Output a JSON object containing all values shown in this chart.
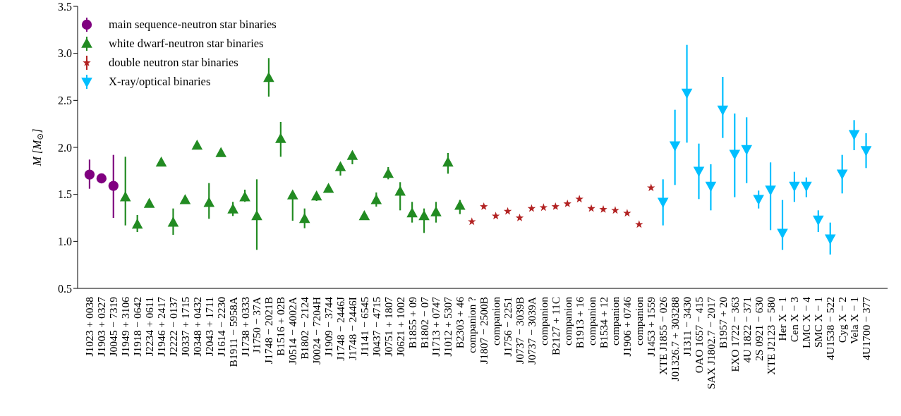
{
  "chart_data": {
    "type": "scatter",
    "ylabel": "M [M$_{⊙}$]",
    "categories": [
      "J1023 + 0038",
      "J1903 + 0327",
      "J0045 − 7319",
      "J1949 + 3106",
      "J1918 − 0642",
      "J2234 + 0611",
      "J1946 + 2417",
      "J2222 − 0137",
      "J0337 + 1715",
      "J0348 + 0432",
      "J2043 + 1711",
      "J1614 − 2230",
      "B1911 − 5958A",
      "J1738 + 0333",
      "J1750 − 37A",
      "J1748 − 2021B",
      "B1516 + 02B",
      "J0514 − 4002A",
      "B1802 − 2124",
      "J0024 − 7204H",
      "J1909 − 3744",
      "J1748 − 2446J",
      "J1748 − 2446I",
      "J1141 − 6545",
      "J0437 − 4715",
      "J0751 + 1807",
      "J0621 + 1002",
      "B1855 + 09",
      "B1802 − 07",
      "J1713 + 0747",
      "J1012 + 5307",
      "B2303 + 46",
      "companion ?",
      "J1807 − 2500B",
      "companion",
      "J1756 − 2251",
      "J0737 − 3039B",
      "J0737 − 3039A",
      "companion",
      "B2127 + 11C",
      "companion",
      "B1913 + 16",
      "companion",
      "B1534 + 12",
      "companion",
      "J1906 + 0746",
      "companion",
      "J1453 + 1559",
      "XTE J1855 − 026",
      "J01326.7 + 303288",
      "J1311 − 3430",
      "OAO 1657 − 415",
      "SAX J1802.7 − 2017",
      "B1957 + 20",
      "EXO 1722 − 363",
      "4U 1822 − 371",
      "2S 0921 − 630",
      "XTE J2123 − 580",
      "Her X − 1",
      "Cen X − 3",
      "LMC X − 4",
      "SMC X − 1",
      "4U1538 − 522",
      "Cyg X − 2",
      "Vela X − 1",
      "4U1700 − 377"
    ],
    "series": [
      {
        "name": "main sequence-neutron star binaries",
        "color": "#800080",
        "marker": "circle",
        "values": [
          1.71,
          1.67,
          1.59,
          null,
          null,
          null,
          null,
          null,
          null,
          null,
          null,
          null,
          null,
          null,
          null,
          null,
          null,
          null,
          null,
          null,
          null,
          null,
          null,
          null,
          null,
          null,
          null,
          null,
          null,
          null,
          null,
          null,
          null,
          null,
          null,
          null,
          null,
          null,
          null,
          null,
          null,
          null,
          null,
          null,
          null,
          null,
          null,
          null,
          null,
          null,
          null,
          null,
          null,
          null,
          null,
          null,
          null,
          null,
          null,
          null,
          null,
          null,
          null,
          null,
          null,
          null
        ],
        "errors": [
          [
            1.56,
            1.87
          ],
          null,
          [
            1.25,
            1.92
          ],
          null,
          null,
          null,
          null,
          null,
          null,
          null,
          null,
          null,
          null,
          null,
          null,
          null,
          null,
          null,
          null,
          null,
          null,
          null,
          null,
          null,
          null,
          null,
          null,
          null,
          null,
          null,
          null,
          null,
          null,
          null,
          null,
          null,
          null,
          null,
          null,
          null,
          null,
          null,
          null,
          null,
          null,
          null,
          null,
          null,
          null,
          null,
          null,
          null,
          null,
          null,
          null,
          null,
          null,
          null,
          null,
          null,
          null,
          null,
          null,
          null,
          null,
          null
        ]
      },
      {
        "name": "white dwarf-neutron star binaries",
        "color": "#228b22",
        "marker": "triangle",
        "values": [
          null,
          null,
          null,
          1.47,
          1.18,
          1.4,
          1.84,
          1.2,
          1.44,
          2.02,
          1.41,
          1.94,
          1.34,
          1.47,
          1.27,
          2.74,
          2.09,
          1.49,
          1.24,
          1.48,
          1.56,
          1.79,
          1.91,
          1.27,
          1.44,
          1.72,
          1.53,
          1.3,
          1.27,
          1.31,
          1.84,
          1.38,
          null,
          null,
          null,
          null,
          null,
          null,
          null,
          null,
          null,
          null,
          null,
          null,
          null,
          null,
          null,
          null,
          null,
          null,
          null,
          null,
          null,
          null,
          null,
          null,
          null,
          null,
          null,
          null,
          null,
          null,
          null,
          null,
          null,
          null
        ],
        "errors": [
          null,
          null,
          null,
          [
            1.17,
            1.9
          ],
          [
            1.1,
            1.28
          ],
          null,
          null,
          [
            1.07,
            1.35
          ],
          null,
          null,
          [
            1.24,
            1.62
          ],
          null,
          [
            1.27,
            1.42
          ],
          [
            1.42,
            1.55
          ],
          [
            0.91,
            1.66
          ],
          [
            2.54,
            2.95
          ],
          [
            1.9,
            2.27
          ],
          [
            1.22,
            1.52
          ],
          [
            1.14,
            1.35
          ],
          [
            1.43,
            1.52
          ],
          null,
          [
            1.7,
            1.83
          ],
          [
            1.82,
            1.95
          ],
          null,
          [
            1.37,
            1.52
          ],
          [
            1.66,
            1.79
          ],
          [
            1.33,
            1.63
          ],
          [
            1.2,
            1.42
          ],
          [
            1.09,
            1.35
          ],
          [
            1.2,
            1.42
          ],
          [
            1.72,
            1.94
          ],
          [
            1.29,
            1.44
          ],
          null,
          null,
          null,
          null,
          null,
          null,
          null,
          null,
          null,
          null,
          null,
          null,
          null,
          null,
          null,
          null,
          null,
          null,
          null,
          null,
          null,
          null,
          null,
          null,
          null,
          null,
          null,
          null,
          null,
          null,
          null,
          null,
          null,
          null
        ]
      },
      {
        "name": "double neutron star binaries",
        "color": "#b22222",
        "marker": "star",
        "values": [
          null,
          null,
          null,
          null,
          null,
          null,
          null,
          null,
          null,
          null,
          null,
          null,
          null,
          null,
          null,
          null,
          null,
          null,
          null,
          null,
          null,
          null,
          null,
          null,
          null,
          null,
          null,
          null,
          null,
          null,
          null,
          null,
          1.21,
          1.37,
          1.27,
          1.32,
          1.25,
          1.35,
          1.36,
          1.37,
          1.4,
          1.45,
          1.35,
          1.34,
          1.33,
          1.3,
          1.18,
          1.57,
          null,
          null,
          null,
          null,
          null,
          null,
          null,
          null,
          null,
          null,
          null,
          null,
          null,
          null,
          null,
          null,
          null,
          null
        ]
      },
      {
        "name": "X-ray/optical binaries",
        "color": "#00bfff",
        "marker": "triangle-down",
        "values": [
          null,
          null,
          null,
          null,
          null,
          null,
          null,
          null,
          null,
          null,
          null,
          null,
          null,
          null,
          null,
          null,
          null,
          null,
          null,
          null,
          null,
          null,
          null,
          null,
          null,
          null,
          null,
          null,
          null,
          null,
          null,
          null,
          null,
          null,
          null,
          null,
          null,
          null,
          null,
          null,
          null,
          null,
          null,
          null,
          null,
          null,
          null,
          null,
          1.42,
          2.02,
          2.58,
          1.75,
          1.59,
          2.4,
          1.93,
          1.98,
          1.45,
          1.55,
          1.09,
          1.59,
          1.59,
          1.23,
          1.03,
          1.72,
          2.14,
          1.97
        ],
        "errors": [
          null,
          null,
          null,
          null,
          null,
          null,
          null,
          null,
          null,
          null,
          null,
          null,
          null,
          null,
          null,
          null,
          null,
          null,
          null,
          null,
          null,
          null,
          null,
          null,
          null,
          null,
          null,
          null,
          null,
          null,
          null,
          null,
          null,
          null,
          null,
          null,
          null,
          null,
          null,
          null,
          null,
          null,
          null,
          null,
          null,
          null,
          null,
          null,
          [
            1.17,
            1.66
          ],
          [
            1.6,
            2.4
          ],
          [
            2.05,
            3.09
          ],
          [
            1.45,
            2.04
          ],
          [
            1.33,
            1.82
          ],
          [
            2.1,
            2.75
          ],
          [
            1.47,
            2.36
          ],
          [
            1.62,
            2.32
          ],
          [
            1.35,
            1.54
          ],
          [
            1.12,
            1.84
          ],
          [
            0.91,
            1.44
          ],
          [
            1.42,
            1.74
          ],
          [
            1.47,
            1.68
          ],
          [
            1.1,
            1.33
          ],
          [
            0.86,
            1.2
          ],
          [
            1.51,
            1.92
          ],
          [
            1.97,
            2.29
          ],
          [
            1.78,
            2.15
          ]
        ]
      }
    ],
    "ylim": [
      0.5,
      3.5
    ],
    "yticks": [
      {
        "value": 0.5,
        "label": "0.5"
      },
      {
        "value": 1,
        "label": "1.0"
      },
      {
        "value": 1.5,
        "label": "1.5"
      },
      {
        "value": 2,
        "label": "2.0"
      },
      {
        "value": 2.5,
        "label": "2.5"
      },
      {
        "value": 3,
        "label": "3.0"
      },
      {
        "value": 3.5,
        "label": "3.5"
      }
    ],
    "legend": "top left",
    "grid": false
  }
}
